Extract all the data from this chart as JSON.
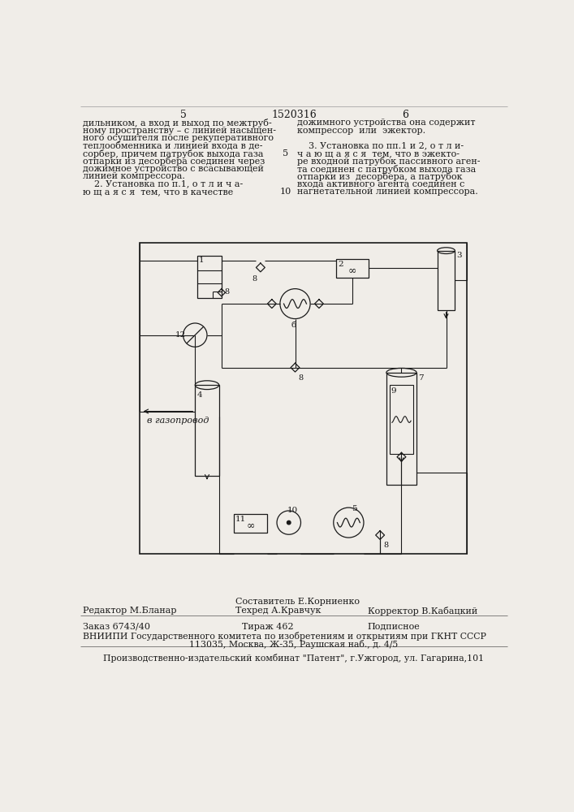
{
  "page_bg": "#f0ede8",
  "title_number": "1520316",
  "col_left_number": "5",
  "col_right_number": "6",
  "text_left_col": [
    "дильником, а вход и выход по межтруб-",
    "ному пространству – с линией насыщен-",
    "ного осушителя после рекуперативного",
    "теплообменника и линией входа в де-",
    "сорбер, причем патрубок выхода газа",
    "отпарки из десорбера соединен через",
    "дожимное устройство с всасывающей",
    "линией компрессора.",
    "    2. Установка по п.1, о т л и ч а-",
    "ю щ а я с я  тем, что в качестве"
  ],
  "text_right_col": [
    "дожимного устройства она содержит",
    "компрессор  или  эжектор.",
    "",
    "    3. Установка по пп.1 и 2, о т л и-",
    "ч а ю щ а я с я  тем, что в эжекто-",
    "ре входной патрубок пассивного аген-",
    "та соединен с патрубком выхода газа",
    "отпарки из  десорбера, а патрубок",
    "входа активного агента соединен с",
    "нагнетательной линией компрессора."
  ],
  "footer_editor": "Редактор М.Бланар",
  "footer_composer": "Составитель Е.Корниенко",
  "footer_techred": "Техред А.Кравчук",
  "footer_corrector": "Корректор В.Кабацкий",
  "footer_order": "Заказ 6743/40",
  "footer_tirazh": "Тираж 462",
  "footer_podpisnoe": "Подписное",
  "footer_vniip": "ВНИИПИ Государственного комитета по изобретениям и открытиям при ГКНТ СССР",
  "footer_address": "113035, Москва, Ж-35, Раушская наб., д. 4/5",
  "footer_publisher": "Производственно-издательский комбинат \"Патент\", г.Ужгород, ул. Гагарина,101"
}
